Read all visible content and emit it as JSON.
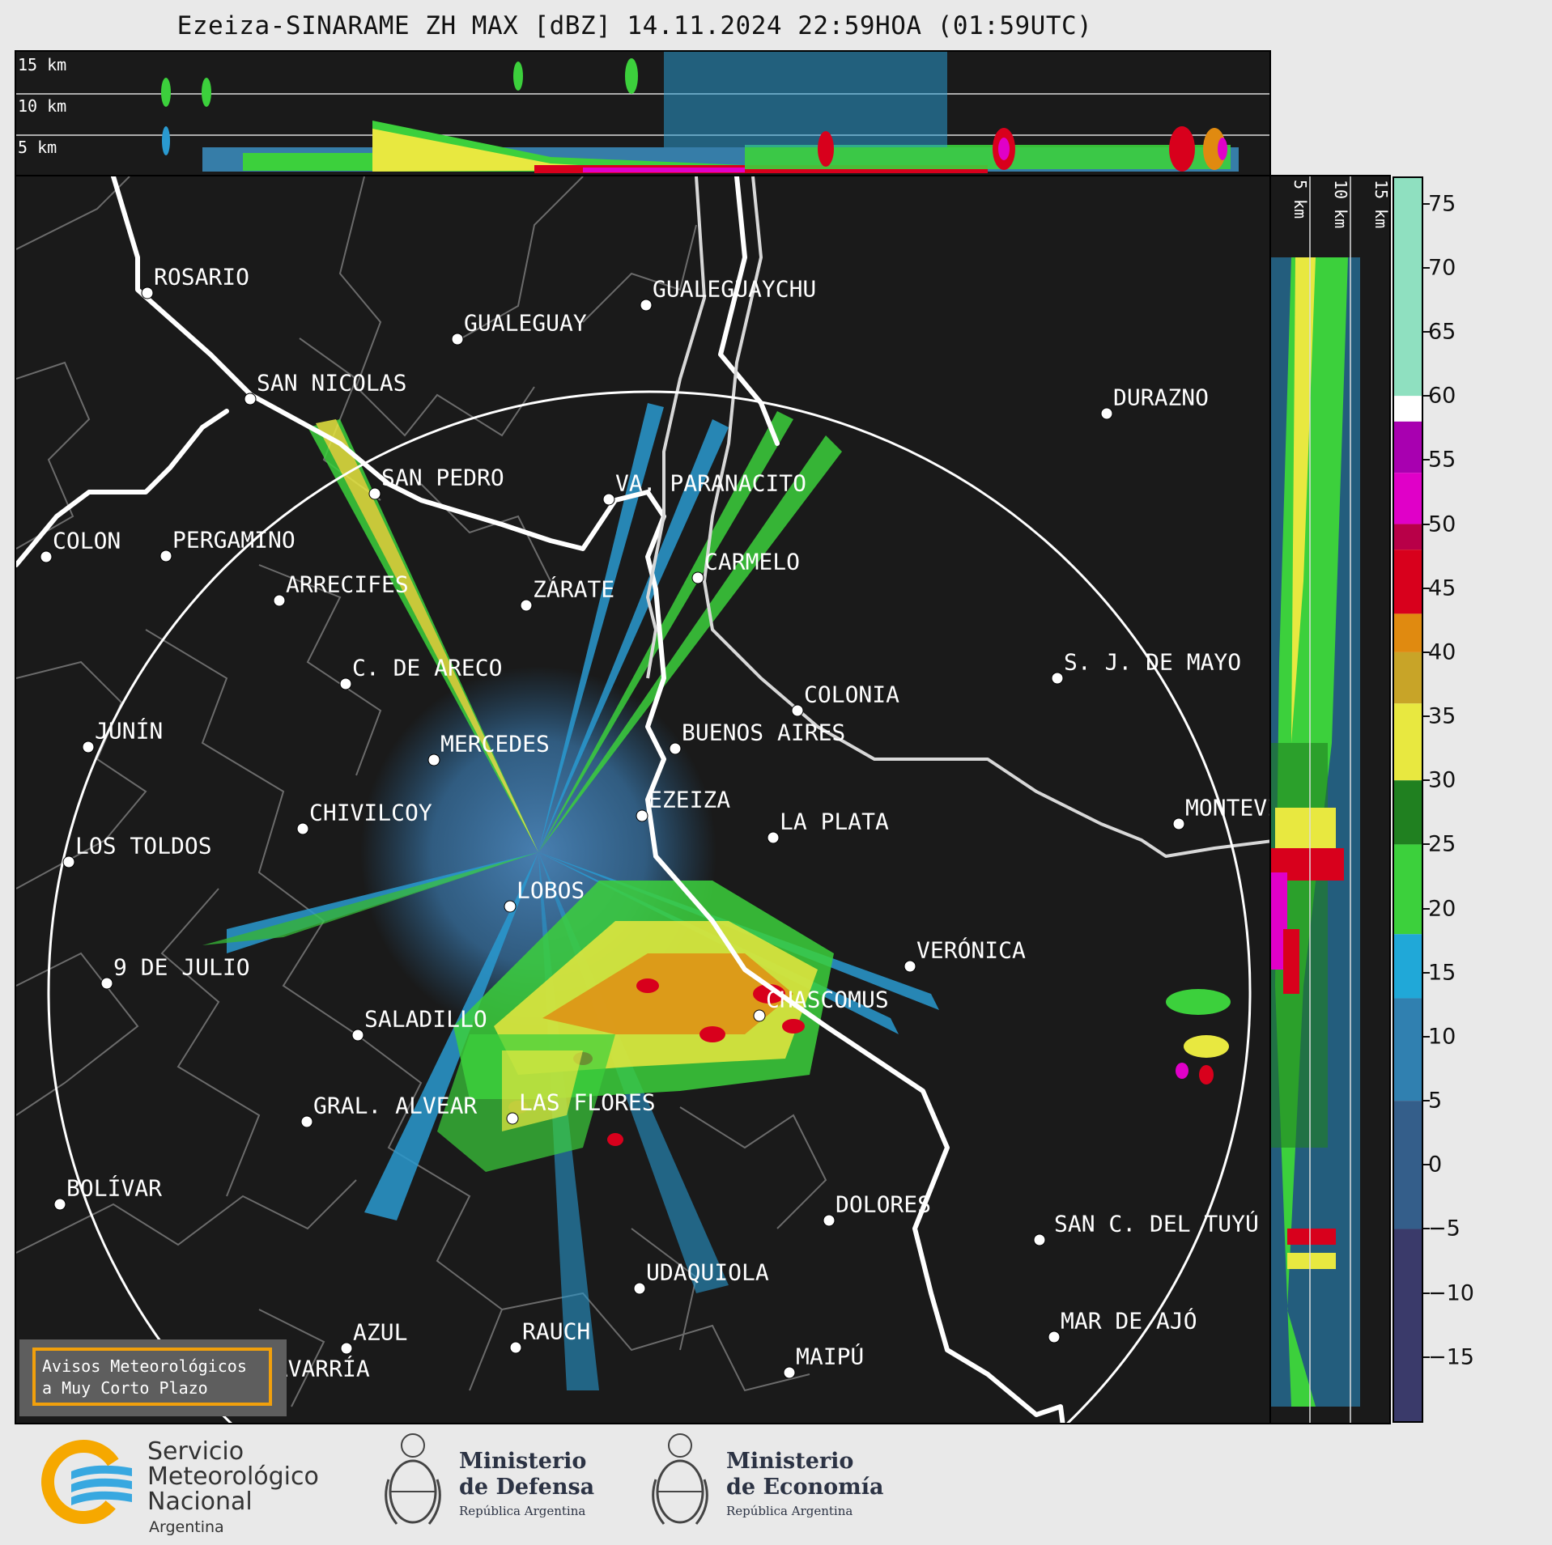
{
  "title": "Ezeiza-SINARAME ZH MAX [dBZ] 14.11.2024 22:59HOA (01:59UTC)",
  "height_labels": [
    "15 km",
    "10 km",
    "5 km"
  ],
  "colorbar": {
    "ticks": [
      "75",
      "70",
      "65",
      "60",
      "55",
      "50",
      "45",
      "40",
      "35",
      "30",
      "25",
      "20",
      "15",
      "10",
      "5",
      "0",
      "−5",
      "−10",
      "−15"
    ],
    "tick_values": [
      75,
      70,
      65,
      60,
      55,
      50,
      45,
      40,
      35,
      30,
      25,
      20,
      15,
      10,
      5,
      0,
      -5,
      -10,
      -15
    ],
    "range": [
      -20,
      77
    ],
    "segments": [
      {
        "from": 60,
        "to": 77,
        "color": "#8fe0c0"
      },
      {
        "from": 58,
        "to": 60,
        "color": "#ffffff"
      },
      {
        "from": 54,
        "to": 58,
        "color": "#a800b0"
      },
      {
        "from": 50,
        "to": 54,
        "color": "#e000c8"
      },
      {
        "from": 48,
        "to": 50,
        "color": "#b80048"
      },
      {
        "from": 43,
        "to": 48,
        "color": "#d8001c"
      },
      {
        "from": 40,
        "to": 43,
        "color": "#e08a10"
      },
      {
        "from": 36,
        "to": 40,
        "color": "#c8a428"
      },
      {
        "from": 30,
        "to": 36,
        "color": "#e8e840"
      },
      {
        "from": 25,
        "to": 30,
        "color": "#208020"
      },
      {
        "from": 18,
        "to": 25,
        "color": "#3cd03c"
      },
      {
        "from": 13,
        "to": 18,
        "color": "#20a8d8"
      },
      {
        "from": 5,
        "to": 13,
        "color": "#3080b0"
      },
      {
        "from": -5,
        "to": 5,
        "color": "#345e8a"
      },
      {
        "from": -20,
        "to": -5,
        "color": "#3a3a6a"
      }
    ]
  },
  "cities": [
    "ROSARIO",
    "GUALEGUAYCHU",
    "GUALEGUAY",
    "SAN NICOLAS",
    "DURAZNO",
    "SAN PEDRO",
    "VA. PARANACITO",
    "COLON",
    "PERGAMINO",
    "CARMELO",
    "ARRECIFES",
    "ZÁRATE",
    "C. DE ARECO",
    "S. J. DE MAYO",
    "COLONIA",
    "JUNÍN",
    "MERCEDES",
    "BUENOS AIRES",
    "CHIVILCOY",
    "EZEIZA",
    "LA PLATA",
    "MONTEVIDEO",
    "LOS TOLDOS",
    "LOBOS",
    "VERÓNICA",
    "9 DE JULIO",
    "CHASCOMUS",
    "SALADILLO",
    "GRAL. ALVEAR",
    "LAS FLORES",
    "BOLÍVAR",
    "DOLORES",
    "SAN C. DEL TUYÚ",
    "UDAQUIOLA",
    "MAR DE AJÓ",
    "AZUL",
    "RAUCH",
    "OLAVARRÍA",
    "MAIPÚ"
  ],
  "aviso": {
    "line1": "Avisos Meteorológicos",
    "line2": "a Muy Corto Plazo"
  },
  "footer": {
    "smn": [
      "Servicio",
      "Meteorológico",
      "Nacional",
      "Argentina"
    ],
    "defensa": [
      "Ministerio",
      "de Defensa",
      "República Argentina"
    ],
    "economia": [
      "Ministerio",
      "de Economía",
      "República Argentina"
    ]
  },
  "colors": {
    "map_bg": "#1a1a1a",
    "ring": "#ffffff",
    "aviso_border": "#f1a00c",
    "smn_orange": "#f6a800",
    "smn_blue": "#38a8e0"
  }
}
